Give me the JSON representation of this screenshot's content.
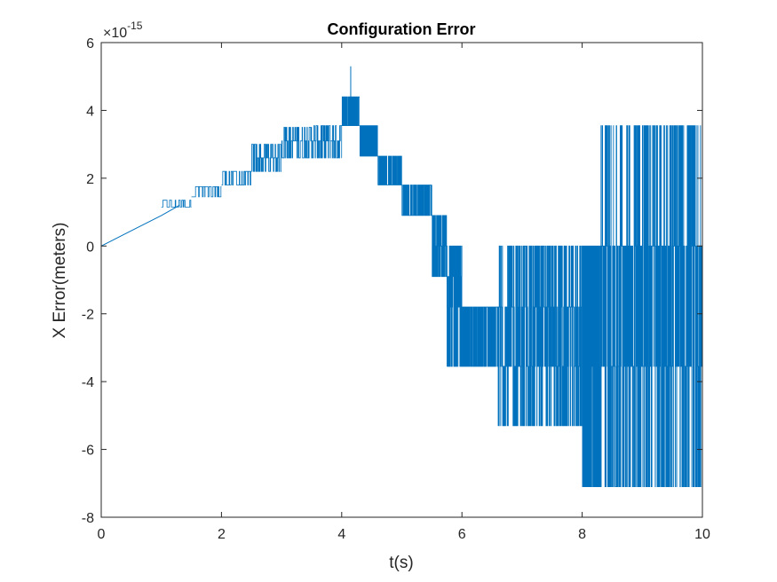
{
  "chart_data": {
    "type": "line",
    "title": "Configuration Error",
    "xlabel": "t(s)",
    "ylabel": "X Error(meters)",
    "xlim": [
      0,
      10
    ],
    "ylim": [
      -8,
      6
    ],
    "y_exponent_label": {
      "base": "×10",
      "exponent": "-15"
    },
    "x_ticks": [
      0,
      2,
      4,
      6,
      8,
      10
    ],
    "y_ticks": [
      -8,
      -6,
      -4,
      -2,
      0,
      2,
      4,
      6
    ],
    "x_tick_labels": [
      "0",
      "2",
      "4",
      "6",
      "8",
      "10"
    ],
    "y_tick_labels": [
      "-8",
      "-6",
      "-4",
      "-2",
      "0",
      "2",
      "4",
      "6"
    ],
    "grid": false,
    "box": true,
    "colors": {
      "series": "#0072bd",
      "axes": "#262626"
    },
    "series": [
      {
        "color": "#0072bd",
        "trend": [
          [
            0,
            0
          ],
          [
            0.5,
            0.45
          ],
          [
            1.0,
            0.9
          ],
          [
            1.3,
            1.2
          ],
          [
            1.6,
            1.35
          ],
          [
            2.0,
            1.8
          ],
          [
            2.5,
            2.25
          ],
          [
            3.0,
            2.7
          ],
          [
            3.5,
            3.0
          ],
          [
            4.0,
            3.2
          ],
          [
            4.15,
            4.0
          ],
          [
            4.4,
            3.1
          ],
          [
            4.7,
            2.2
          ],
          [
            5.0,
            1.3
          ],
          [
            5.5,
            0.2
          ],
          [
            6.0,
            -1.8
          ],
          [
            6.5,
            -2.4
          ],
          [
            7.0,
            -2.7
          ],
          [
            7.5,
            -2.7
          ],
          [
            8.0,
            -2.8
          ],
          [
            8.5,
            -2.6
          ],
          [
            9.0,
            -2.3
          ],
          [
            9.5,
            -2.2
          ],
          [
            10.0,
            -2.0
          ]
        ],
        "bands": [
          {
            "x": [
              0.0,
              1.0
            ],
            "levels": [],
            "density": 0
          },
          {
            "x": [
              1.0,
              1.5
            ],
            "levels": [
              1.15,
              1.35
            ],
            "density": 30
          },
          {
            "x": [
              1.5,
              2.0
            ],
            "levels": [
              1.45,
              1.75
            ],
            "density": 40
          },
          {
            "x": [
              2.0,
              2.5
            ],
            "levels": [
              1.8,
              2.2
            ],
            "density": 50
          },
          {
            "x": [
              2.5,
              3.0
            ],
            "levels": [
              2.2,
              2.6,
              3.0
            ],
            "density": 60
          },
          {
            "x": [
              3.0,
              3.5
            ],
            "levels": [
              2.6,
              3.1,
              3.5
            ],
            "density": 80
          },
          {
            "x": [
              3.5,
              4.0
            ],
            "levels": [
              2.6,
              3.1,
              3.55
            ],
            "density": 90
          },
          {
            "x": [
              4.0,
              4.3
            ],
            "levels": [
              3.55,
              4.4
            ],
            "density": 120
          },
          {
            "x": [
              4.3,
              4.6
            ],
            "levels": [
              2.65,
              3.55
            ],
            "density": 120
          },
          {
            "x": [
              4.6,
              5.0
            ],
            "levels": [
              1.8,
              2.65
            ],
            "density": 120
          },
          {
            "x": [
              5.0,
              5.5
            ],
            "levels": [
              0.9,
              1.8
            ],
            "density": 140
          },
          {
            "x": [
              5.5,
              5.75
            ],
            "levels": [
              -0.9,
              0.0,
              0.9
            ],
            "density": 140
          },
          {
            "x": [
              5.75,
              6.0
            ],
            "levels": [
              -3.55,
              -1.8,
              -0.9,
              0.0
            ],
            "density": 150
          },
          {
            "x": [
              6.0,
              6.6
            ],
            "levels": [
              -3.55,
              -1.8
            ],
            "density": 250
          },
          {
            "x": [
              6.6,
              8.0
            ],
            "levels": [
              -5.3,
              -3.55,
              -1.8,
              0.0
            ],
            "density": 400
          },
          {
            "x": [
              8.0,
              8.3
            ],
            "levels": [
              -7.1,
              -3.55,
              0.0
            ],
            "density": 200
          },
          {
            "x": [
              8.3,
              10.0
            ],
            "levels": [
              -7.1,
              -3.55,
              0.0,
              3.55
            ],
            "density": 500
          }
        ],
        "peak": [
          4.15,
          5.3
        ]
      }
    ]
  }
}
